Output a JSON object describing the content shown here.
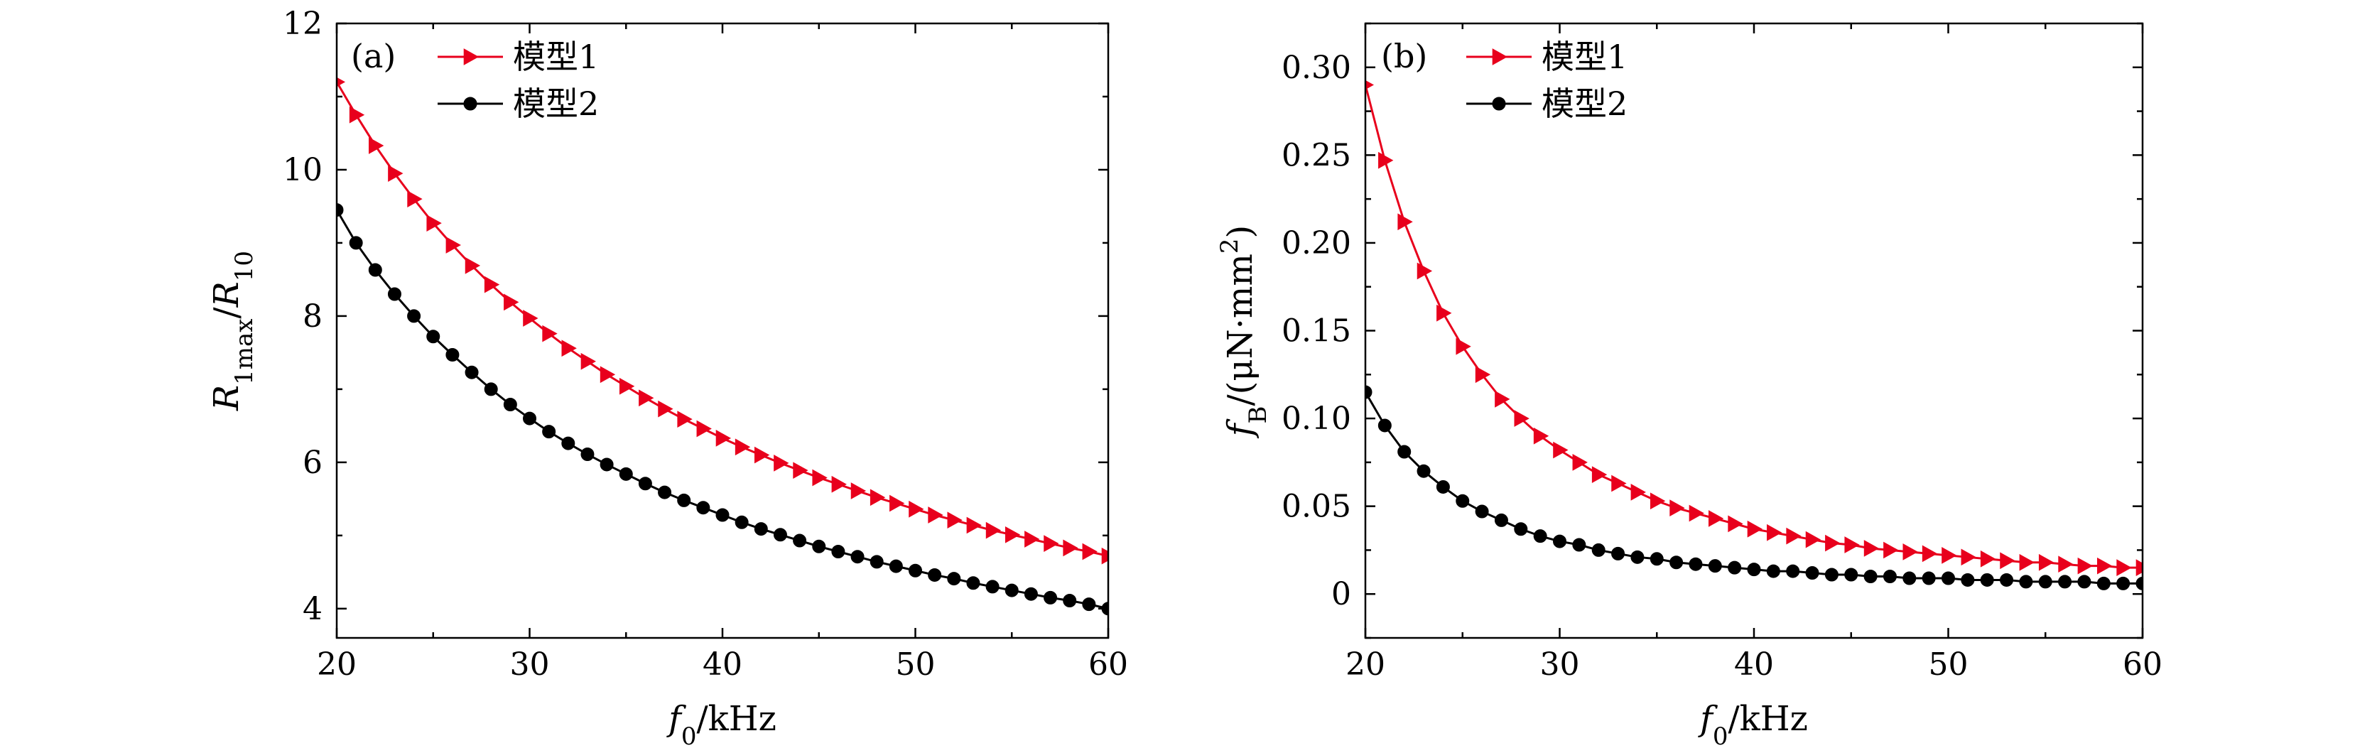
{
  "chart_data": [
    {
      "type": "line",
      "panel_label": "(a)",
      "xlabel": "f0/kHz",
      "ylabel": "R1max/R10",
      "xlim": [
        20,
        60
      ],
      "ylim": [
        3.6,
        12
      ],
      "xticks": [
        20,
        30,
        40,
        50,
        60
      ],
      "yticks": [
        4,
        6,
        8,
        10,
        12
      ],
      "x": [
        20,
        21,
        22,
        23,
        24,
        25,
        26,
        27,
        28,
        29,
        30,
        31,
        32,
        33,
        34,
        35,
        36,
        37,
        38,
        39,
        40,
        41,
        42,
        43,
        44,
        45,
        46,
        47,
        48,
        49,
        50,
        51,
        52,
        53,
        54,
        55,
        56,
        57,
        58,
        59,
        60
      ],
      "series": [
        {
          "name": "模型1",
          "color": "#e8001c",
          "marker": "triangle-right",
          "values": [
            11.2,
            10.75,
            10.33,
            9.95,
            9.6,
            9.27,
            8.97,
            8.69,
            8.43,
            8.19,
            7.97,
            7.76,
            7.56,
            7.38,
            7.2,
            7.04,
            6.88,
            6.73,
            6.59,
            6.46,
            6.33,
            6.21,
            6.1,
            5.99,
            5.89,
            5.79,
            5.7,
            5.61,
            5.52,
            5.44,
            5.36,
            5.28,
            5.21,
            5.14,
            5.07,
            5.01,
            4.95,
            4.89,
            4.83,
            4.78,
            4.72
          ]
        },
        {
          "name": "模型2",
          "color": "#000000",
          "marker": "circle",
          "values": [
            9.45,
            9.0,
            8.63,
            8.3,
            8.0,
            7.72,
            7.47,
            7.23,
            7.0,
            6.79,
            6.6,
            6.42,
            6.26,
            6.11,
            5.97,
            5.84,
            5.71,
            5.59,
            5.48,
            5.38,
            5.28,
            5.18,
            5.09,
            5.01,
            4.93,
            4.85,
            4.78,
            4.71,
            4.64,
            4.58,
            4.52,
            4.46,
            4.41,
            4.35,
            4.3,
            4.25,
            4.2,
            4.15,
            4.11,
            4.06,
            4.0
          ]
        }
      ],
      "legend": "top-left",
      "grid": false
    },
    {
      "type": "line",
      "panel_label": "(b)",
      "xlabel": "f0/kHz",
      "ylabel": "fB/(μN·mm2)",
      "xlim": [
        20,
        60
      ],
      "ylim": [
        -0.025,
        0.325
      ],
      "xticks": [
        20,
        30,
        40,
        50,
        60
      ],
      "yticks": [
        0,
        0.05,
        0.1,
        0.15,
        0.2,
        0.25,
        0.3
      ],
      "ytick_labels": [
        "0",
        "0.05",
        "0.10",
        "0.15",
        "0.20",
        "0.25",
        "0.30"
      ],
      "x": [
        20,
        21,
        22,
        23,
        24,
        25,
        26,
        27,
        28,
        29,
        30,
        31,
        32,
        33,
        34,
        35,
        36,
        37,
        38,
        39,
        40,
        41,
        42,
        43,
        44,
        45,
        46,
        47,
        48,
        49,
        50,
        51,
        52,
        53,
        54,
        55,
        56,
        57,
        58,
        59,
        60
      ],
      "series": [
        {
          "name": "模型1",
          "color": "#e8001c",
          "marker": "triangle-right",
          "values": [
            0.29,
            0.247,
            0.212,
            0.184,
            0.16,
            0.141,
            0.125,
            0.111,
            0.1,
            0.09,
            0.082,
            0.075,
            0.068,
            0.063,
            0.058,
            0.053,
            0.049,
            0.046,
            0.043,
            0.04,
            0.037,
            0.035,
            0.033,
            0.031,
            0.029,
            0.028,
            0.026,
            0.025,
            0.024,
            0.023,
            0.022,
            0.021,
            0.02,
            0.019,
            0.018,
            0.018,
            0.017,
            0.016,
            0.016,
            0.015,
            0.015
          ]
        },
        {
          "name": "模型2",
          "color": "#000000",
          "marker": "circle",
          "values": [
            0.115,
            0.096,
            0.081,
            0.07,
            0.061,
            0.053,
            0.047,
            0.042,
            0.037,
            0.033,
            0.03,
            0.028,
            0.025,
            0.023,
            0.021,
            0.02,
            0.018,
            0.017,
            0.016,
            0.015,
            0.014,
            0.013,
            0.013,
            0.012,
            0.011,
            0.011,
            0.01,
            0.01,
            0.009,
            0.009,
            0.009,
            0.008,
            0.008,
            0.008,
            0.007,
            0.007,
            0.007,
            0.007,
            0.006,
            0.006,
            0.006
          ]
        }
      ],
      "legend": "top-left",
      "grid": false
    }
  ]
}
